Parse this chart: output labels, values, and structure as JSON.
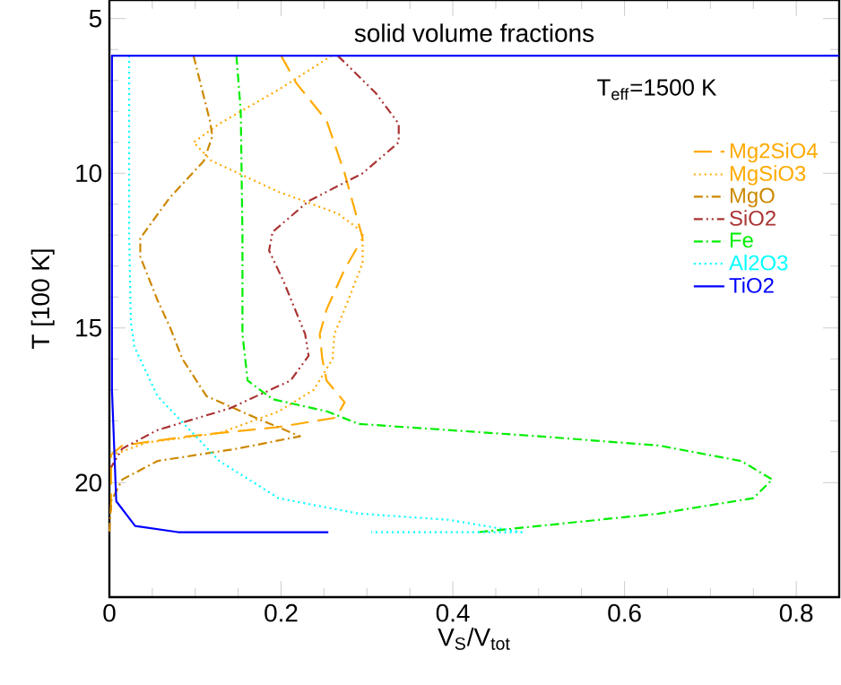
{
  "chart_data": {
    "type": "line",
    "title": "solid volume fractions",
    "xlabel": "V$_{S}$/V$_{tot}$",
    "ylabel": "T [100 K]",
    "annotations": [
      "T$_{eff}$=1500 K"
    ],
    "xlim": [
      0,
      0.85
    ],
    "xticks": [
      0,
      0.2,
      0.4,
      0.6,
      0.8
    ],
    "ylim": [
      23.7,
      4.4
    ],
    "yticks": [
      5,
      10,
      15,
      20
    ],
    "legend": "top right",
    "grid": false,
    "series": [
      {
        "name": "Mg2SiO4",
        "color": "#ffaa00",
        "line_style": "dashed",
        "x": [
          0.2,
          0.218,
          0.253,
          0.274,
          0.287,
          0.295,
          0.274,
          0.253,
          0.245,
          0.248,
          0.253,
          0.274,
          0.264,
          0.197,
          0.092,
          0.015,
          0.002,
          0.002
        ],
        "values": [
          6.2,
          7.1,
          8.3,
          10.0,
          11.3,
          12.1,
          13.1,
          14.4,
          15.2,
          16.0,
          16.7,
          17.4,
          17.9,
          18.2,
          18.5,
          18.8,
          19.1,
          21.0
        ]
      },
      {
        "name": "MgSiO3",
        "color": "#ffaa00",
        "line_style": "dotted",
        "x": [
          0.259,
          0.197,
          0.128,
          0.098,
          0.119,
          0.197,
          0.266,
          0.295,
          0.295,
          0.274,
          0.262,
          0.26,
          0.238,
          0.197,
          0.128,
          0.044,
          0.004
        ],
        "values": [
          6.2,
          7.3,
          8.4,
          9.0,
          9.6,
          10.6,
          11.3,
          11.9,
          12.9,
          14.4,
          15.2,
          16.0,
          17.0,
          17.7,
          18.4,
          18.7,
          19.1
        ]
      },
      {
        "name": "MgO",
        "color": "#cc8800",
        "line_style": "dashdot",
        "x": [
          0.098,
          0.117,
          0.12,
          0.11,
          0.07,
          0.036,
          0.036,
          0.056,
          0.071,
          0.085,
          0.113,
          0.17,
          0.222,
          0.149,
          0.056,
          0.015,
          0.002,
          0.0
        ],
        "values": [
          6.2,
          8.3,
          8.8,
          9.6,
          10.8,
          12.1,
          12.7,
          14.1,
          15.0,
          16.0,
          17.2,
          17.9,
          18.5,
          18.9,
          19.3,
          19.9,
          20.6,
          21.6
        ]
      },
      {
        "name": "SiO2",
        "color": "#aa3333",
        "line_style": "dashdotdot",
        "x": [
          0.266,
          0.31,
          0.337,
          0.337,
          0.295,
          0.232,
          0.19,
          0.186,
          0.203,
          0.228,
          0.232,
          0.211,
          0.14,
          0.056,
          0.015,
          0.002
        ],
        "values": [
          6.2,
          7.4,
          8.4,
          9.0,
          10.0,
          10.9,
          11.9,
          12.5,
          13.5,
          15.2,
          15.9,
          16.7,
          17.6,
          18.3,
          18.9,
          19.5
        ]
      },
      {
        "name": "Fe",
        "color": "#00ee00",
        "line_style": "dashdot",
        "x": [
          0.148,
          0.153,
          0.155,
          0.155,
          0.161,
          0.19,
          0.254,
          0.29,
          0.5,
          0.64,
          0.736,
          0.772,
          0.75,
          0.64,
          0.5,
          0.43
        ],
        "values": [
          6.2,
          8.0,
          12.0,
          15.2,
          16.7,
          17.3,
          17.7,
          18.1,
          18.5,
          18.8,
          19.3,
          19.9,
          20.5,
          21.0,
          21.4,
          21.6
        ]
      },
      {
        "name": "Al2O3",
        "color": "#00ffff",
        "line_style": "dotted",
        "x": [
          0.023,
          0.023,
          0.025,
          0.029,
          0.056,
          0.128,
          0.197,
          0.29,
          0.395,
          0.48,
          0.305
        ],
        "values": [
          6.2,
          12.0,
          14.8,
          15.6,
          17.2,
          19.3,
          20.5,
          21.0,
          21.2,
          21.6,
          21.6
        ]
      },
      {
        "name": "TiO2",
        "color": "#0000ff",
        "line_style": "solid",
        "x": [
          0.85,
          0.003,
          0.003,
          0.008,
          0.03,
          0.08,
          0.255
        ],
        "values": [
          6.2,
          6.2,
          17.0,
          20.6,
          21.4,
          21.6,
          21.6
        ]
      }
    ]
  }
}
